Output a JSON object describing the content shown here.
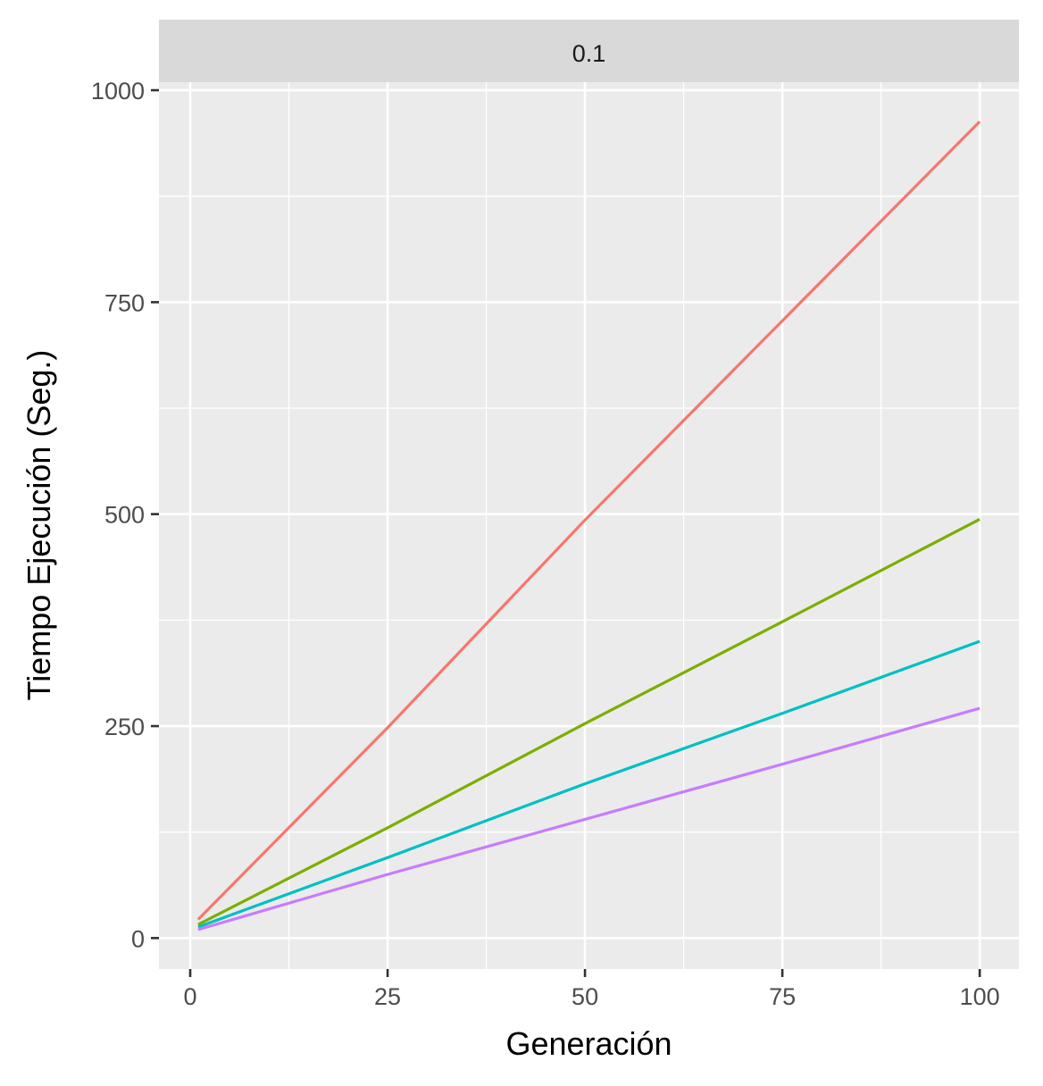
{
  "chart_data": {
    "type": "line",
    "facet_label": "0.1",
    "xlabel": "Generación",
    "ylabel": "Tiempo Ejecución (Seg.)",
    "xlim": [
      -3.96,
      104.96
    ],
    "ylim": [
      -36.5,
      1009.5
    ],
    "x_ticks": [
      0,
      25,
      50,
      75,
      100
    ],
    "y_ticks": [
      0,
      250,
      500,
      750,
      1000
    ],
    "x_tick_labels": [
      "0",
      "25",
      "50",
      "75",
      "100"
    ],
    "y_tick_labels": [
      "0",
      "250",
      "500",
      "750",
      "1000"
    ],
    "grid": true,
    "legend": "none",
    "series": [
      {
        "color": "#F8766D",
        "x": [
          1,
          25,
          50,
          75,
          100
        ],
        "y": [
          22,
          248,
          493,
          728,
          963
        ]
      },
      {
        "color": "#7CAE00",
        "x": [
          1,
          25,
          50,
          75,
          100
        ],
        "y": [
          16,
          130,
          253,
          373,
          494
        ]
      },
      {
        "color": "#00BFC4",
        "x": [
          1,
          25,
          50,
          75,
          100
        ],
        "y": [
          13,
          95,
          182,
          265,
          350
        ]
      },
      {
        "color": "#C77CFF",
        "x": [
          1,
          25,
          50,
          75,
          100
        ],
        "y": [
          10,
          75,
          140,
          205,
          271
        ]
      }
    ]
  }
}
